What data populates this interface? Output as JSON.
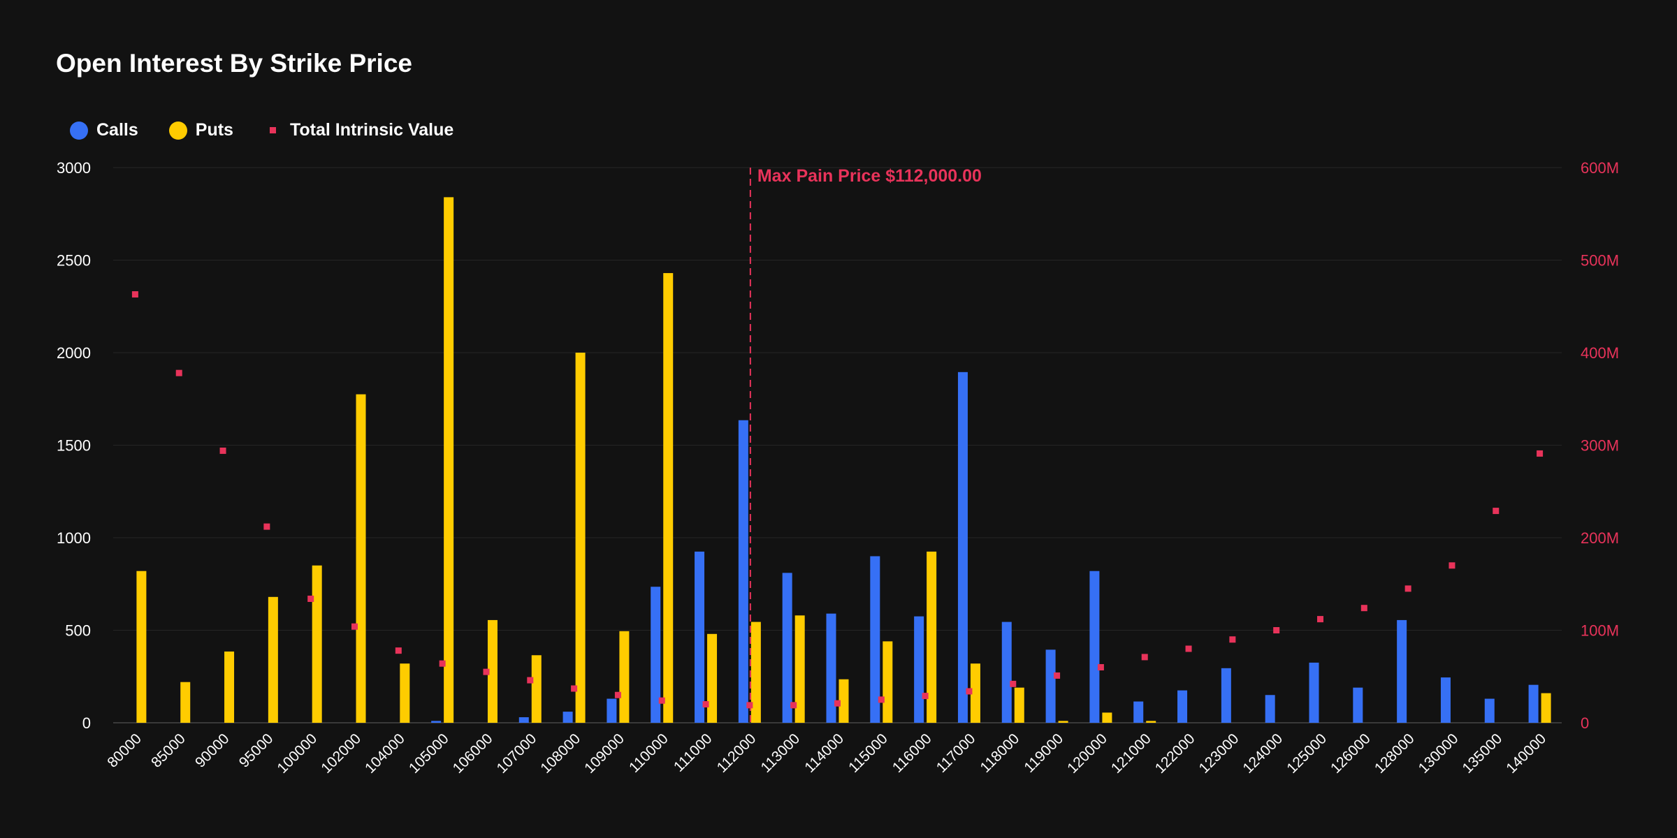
{
  "chart_data": {
    "type": "bar",
    "title": "Open Interest By Strike Price",
    "categories": [
      "80000",
      "85000",
      "90000",
      "95000",
      "100000",
      "102000",
      "104000",
      "105000",
      "106000",
      "107000",
      "108000",
      "109000",
      "110000",
      "111000",
      "112000",
      "113000",
      "114000",
      "115000",
      "116000",
      "117000",
      "118000",
      "119000",
      "120000",
      "121000",
      "122000",
      "123000",
      "124000",
      "125000",
      "126000",
      "128000",
      "130000",
      "135000",
      "140000"
    ],
    "series": [
      {
        "name": "Calls",
        "axis": "left",
        "color": "#3670f5",
        "values": [
          0,
          0,
          0,
          0,
          0,
          0,
          0,
          10,
          0,
          30,
          60,
          130,
          735,
          925,
          1635,
          810,
          590,
          900,
          575,
          1895,
          545,
          395,
          820,
          115,
          175,
          295,
          150,
          325,
          190,
          555,
          245,
          130,
          205
        ]
      },
      {
        "name": "Puts",
        "axis": "left",
        "color": "#ffcc00",
        "values": [
          820,
          220,
          385,
          680,
          850,
          1775,
          320,
          2840,
          555,
          365,
          2000,
          495,
          2430,
          480,
          545,
          580,
          235,
          440,
          925,
          320,
          190,
          10,
          55,
          10,
          0,
          0,
          0,
          0,
          0,
          0,
          0,
          0,
          160
        ]
      },
      {
        "name": "Total Intrinsic Value",
        "axis": "right",
        "type": "scatter",
        "color": "#e8335a",
        "values": [
          463000000,
          378000000,
          294000000,
          212000000,
          134000000,
          104000000,
          78000000,
          64000000,
          55000000,
          46000000,
          37000000,
          30000000,
          24000000,
          20000000,
          19000000,
          19000000,
          21000000,
          25000000,
          29000000,
          34000000,
          42000000,
          51000000,
          60000000,
          71000000,
          80000000,
          90000000,
          100000000,
          112000000,
          124000000,
          145000000,
          170000000,
          229000000,
          291000000
        ]
      }
    ],
    "ylim_left": [
      0,
      3000
    ],
    "yticks_left": [
      "0",
      "500",
      "1000",
      "1500",
      "2000",
      "2500",
      "3000"
    ],
    "ylim_right": [
      0,
      600000000
    ],
    "yticks_right": [
      "0",
      "100M",
      "200M",
      "300M",
      "400M",
      "500M",
      "600M"
    ],
    "xlabel": "",
    "ylabel": "",
    "grid": true,
    "legend": "top-left",
    "annotation": {
      "x": "112000",
      "label": "Max Pain Price $112,000.00",
      "color": "#e8335a"
    }
  },
  "legend": {
    "calls_label": "Calls",
    "puts_label": "Puts",
    "tiv_label": "Total Intrinsic Value"
  },
  "colors": {
    "calls": "#3670f5",
    "puts": "#ffcc00",
    "tiv": "#e8335a",
    "grid": "#262626"
  }
}
